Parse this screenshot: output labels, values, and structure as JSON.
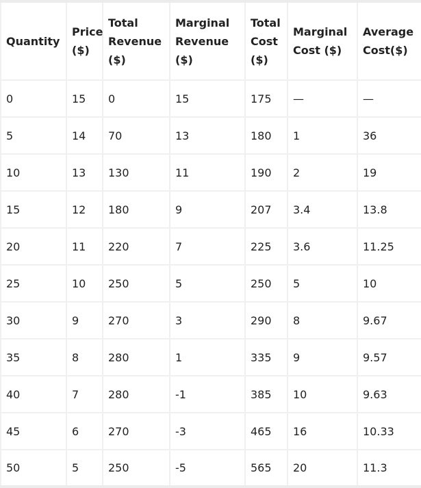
{
  "table": {
    "headers": [
      [
        "Quantity"
      ],
      [
        "Price",
        "($)"
      ],
      [
        "Total",
        "Revenue",
        "($)"
      ],
      [
        "Marginal",
        "Revenue",
        "($)"
      ],
      [
        "Total",
        "Cost",
        "($)"
      ],
      [
        "Marginal",
        "Cost ($)"
      ],
      [
        "Average",
        "Cost($)"
      ]
    ],
    "rows": [
      [
        "0",
        "15",
        "0",
        "15",
        "175",
        "—",
        "—"
      ],
      [
        "5",
        "14",
        "70",
        "13",
        "180",
        "1",
        "36"
      ],
      [
        "10",
        "13",
        "130",
        "11",
        "190",
        "2",
        "19"
      ],
      [
        "15",
        "12",
        "180",
        "9",
        "207",
        "3.4",
        "13.8"
      ],
      [
        "20",
        "11",
        "220",
        "7",
        "225",
        "3.6",
        "11.25"
      ],
      [
        "25",
        "10",
        "250",
        "5",
        "250",
        "5",
        "10"
      ],
      [
        "30",
        "9",
        "270",
        "3",
        "290",
        "8",
        "9.67"
      ],
      [
        "35",
        "8",
        "280",
        "1",
        "335",
        "9",
        "9.57"
      ],
      [
        "40",
        "7",
        "280",
        "-1",
        "385",
        "10",
        "9.63"
      ],
      [
        "45",
        "6",
        "270",
        "-3",
        "465",
        "16",
        "10.33"
      ],
      [
        "50",
        "5",
        "250",
        "-5",
        "565",
        "20",
        "11.3"
      ]
    ]
  }
}
